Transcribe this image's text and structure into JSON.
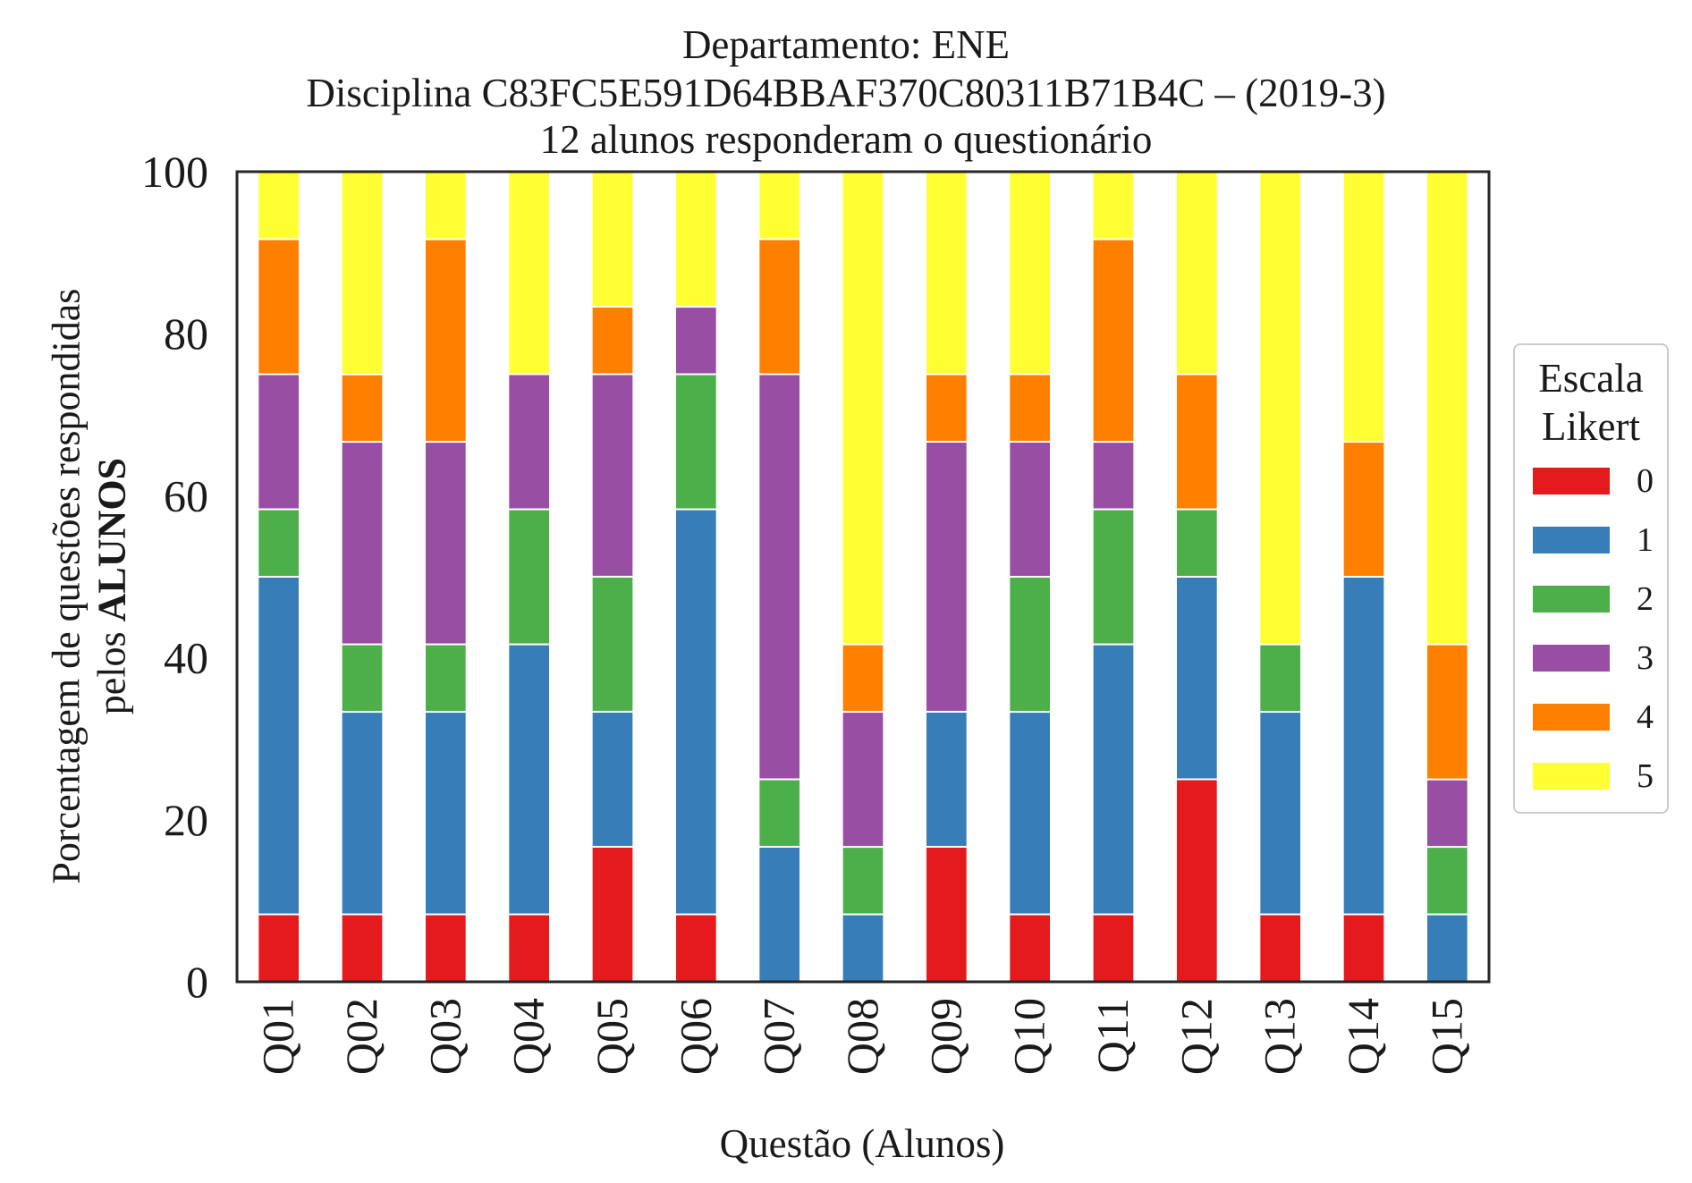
{
  "chart_data": {
    "type": "bar",
    "stacked": true,
    "title_lines": [
      "Departamento: ENE",
      "Disciplina C83FC5E591D64BBAF370C80311B71B4C – (2019-3)",
      "12 alunos responderam o questionário"
    ],
    "ylabel_line1": "Porcentagem de questões respondidas",
    "ylabel_line2_prefix": "pelos ",
    "ylabel_line2_bold": "ALUNOS",
    "xlabel": "Questão (Alunos)",
    "ylim": [
      0,
      100
    ],
    "yticks": [
      0,
      20,
      40,
      60,
      80,
      100
    ],
    "grid": false,
    "legend": {
      "title_line1": "Escala",
      "title_line2": "Likert",
      "placement": "center-right"
    },
    "categories": [
      "Q01",
      "Q02",
      "Q03",
      "Q04",
      "Q05",
      "Q06",
      "Q07",
      "Q08",
      "Q09",
      "Q10",
      "Q11",
      "Q12",
      "Q13",
      "Q14",
      "Q15"
    ],
    "series": [
      {
        "name": "0",
        "color": "#e41a1c",
        "values": [
          8.33,
          8.33,
          8.33,
          8.33,
          16.67,
          8.33,
          0,
          0,
          16.67,
          8.33,
          8.33,
          25,
          8.33,
          8.33,
          0
        ]
      },
      {
        "name": "1",
        "color": "#377eb8",
        "values": [
          41.67,
          25,
          25,
          33.33,
          16.67,
          50,
          16.67,
          8.33,
          16.67,
          25,
          33.33,
          25,
          25,
          41.67,
          8.33
        ]
      },
      {
        "name": "2",
        "color": "#4daf4a",
        "values": [
          8.33,
          8.33,
          8.33,
          16.67,
          16.67,
          16.67,
          8.33,
          8.33,
          0,
          16.67,
          16.67,
          8.33,
          8.33,
          0,
          8.33
        ]
      },
      {
        "name": "3",
        "color": "#984ea3",
        "values": [
          16.67,
          25,
          25,
          16.67,
          25,
          8.33,
          50,
          16.67,
          33.33,
          16.67,
          8.33,
          0,
          0,
          0,
          8.33
        ]
      },
      {
        "name": "4",
        "color": "#ff7f00",
        "values": [
          16.67,
          8.33,
          25,
          0,
          8.33,
          0,
          16.67,
          8.33,
          8.33,
          8.33,
          25,
          16.67,
          0,
          16.67,
          16.67
        ]
      },
      {
        "name": "5",
        "color": "#ffff33",
        "values": [
          8.33,
          25,
          8.33,
          25,
          16.67,
          16.67,
          8.33,
          58.33,
          25,
          25,
          8.33,
          25,
          58.33,
          33.33,
          58.33
        ]
      }
    ]
  }
}
